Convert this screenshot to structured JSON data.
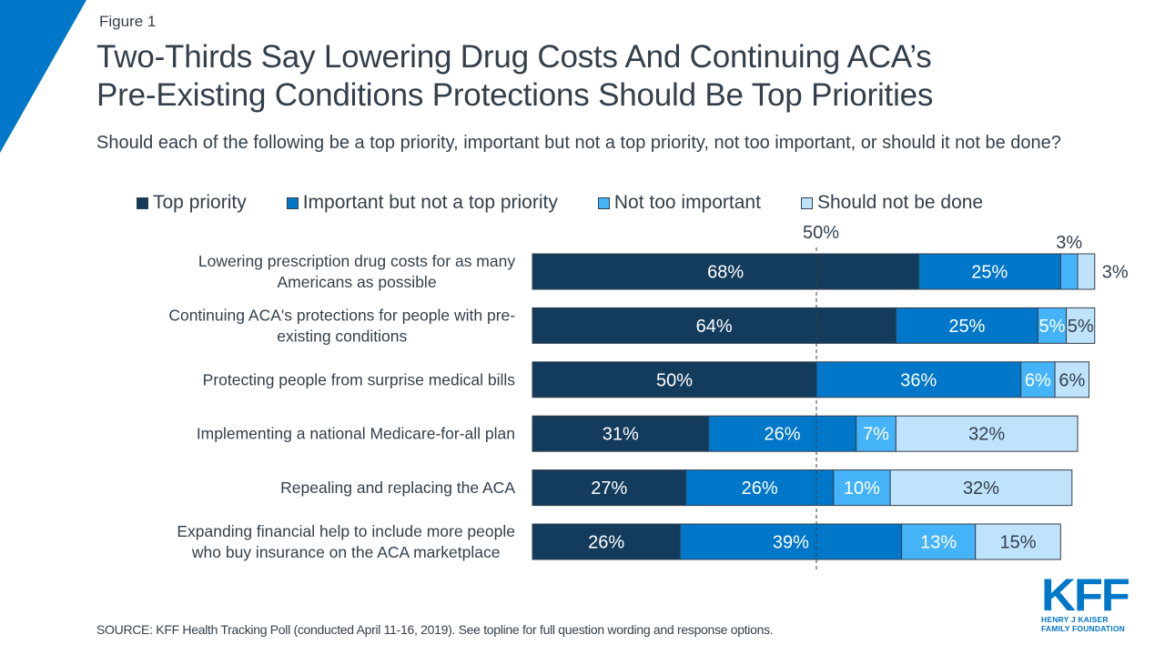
{
  "figure_label": "Figure 1",
  "title_lines": [
    "Two-Thirds Say Lowering Drug Costs And Continuing ACA’s",
    "Pre-Existing Conditions Protections Should Be Top Priorities"
  ],
  "subtitle": "Should each of the following be a top priority, important but not a top priority, not too important, or should it not be done?",
  "source": "SOURCE: KFF Health Tracking Poll (conducted April 11-16, 2019). See topline for full question wording and response options.",
  "logo": {
    "mark": "KFF",
    "line1": "HENRY J KAISER",
    "line2": "FAMILY FOUNDATION"
  },
  "colors": {
    "accent": "#0077c8",
    "top_priority": "#133b5c",
    "important": "#0077c8",
    "not_too_important": "#45b3f8",
    "should_not_be_done": "#c0e3fc",
    "text": "#333f4b"
  },
  "chart_data": {
    "type": "bar",
    "orientation": "horizontal",
    "stacked": true,
    "title": "Two-Thirds Say Lowering Drug Costs And Continuing ACA’s Pre-Existing Conditions Protections Should Be Top Priorities",
    "xlabel": "",
    "ylabel": "",
    "xlim": [
      0,
      100
    ],
    "grid": false,
    "reference_line": {
      "value": 50,
      "label": "50%",
      "style": "dashed"
    },
    "legend_position": "top",
    "categories": [
      "Lowering prescription drug costs for as many Americans as possible",
      "Continuing ACA's protections for people with pre-existing conditions",
      "Protecting people from surprise medical bills",
      "Implementing a national Medicare-for-all plan",
      "Repealing and replacing the ACA",
      "Expanding financial help to include more people who buy insurance on the ACA marketplace"
    ],
    "category_lines": [
      [
        "Lowering prescription drug costs for as many",
        "Americans as possible"
      ],
      [
        "Continuing ACA's protections for people with pre-",
        "existing conditions"
      ],
      [
        "Protecting people from surprise medical bills"
      ],
      [
        "Implementing a national Medicare-for-all plan"
      ],
      [
        "Repealing and replacing the ACA"
      ],
      [
        "Expanding financial help to include more people",
        "who buy insurance on the ACA marketplace"
      ]
    ],
    "series": [
      {
        "name": "Top priority",
        "color": "#133b5c",
        "label_color": "#ffffff",
        "values": [
          68,
          64,
          50,
          31,
          27,
          26
        ]
      },
      {
        "name": "Important but not a top priority",
        "color": "#0077c8",
        "label_color": "#ffffff",
        "values": [
          25,
          25,
          36,
          26,
          26,
          39
        ]
      },
      {
        "name": "Not too important",
        "color": "#45b3f8",
        "label_color": "#ffffff",
        "values": [
          3,
          5,
          6,
          7,
          10,
          13
        ]
      },
      {
        "name": "Should not be done",
        "color": "#c0e3fc",
        "label_color": "#333f4b",
        "values": [
          3,
          5,
          6,
          32,
          32,
          15
        ]
      }
    ],
    "data_labels": [
      [
        "68%",
        "25%",
        "3%",
        "3%"
      ],
      [
        "64%",
        "25%",
        "5%",
        "5%"
      ],
      [
        "50%",
        "36%",
        "6%",
        "6%"
      ],
      [
        "31%",
        "26%",
        "7%",
        "32%"
      ],
      [
        "27%",
        "26%",
        "10%",
        "32%"
      ],
      [
        "26%",
        "39%",
        "13%",
        "15%"
      ]
    ],
    "outside_labels": [
      {
        "row": 0,
        "series": 2,
        "position": "above"
      },
      {
        "row": 0,
        "series": 3,
        "position": "right"
      }
    ]
  }
}
